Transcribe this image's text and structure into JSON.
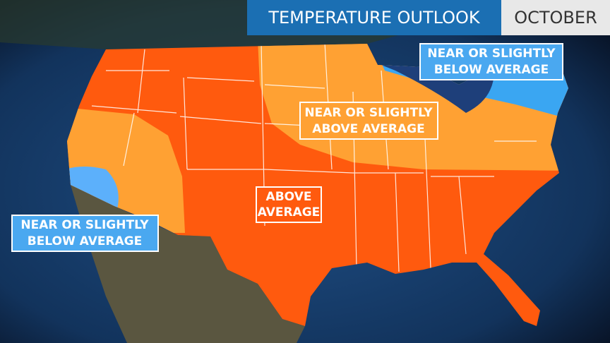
{
  "header": {
    "title": "TEMPERATURE OUTLOOK",
    "month": "OCTOBER"
  },
  "labels": [
    {
      "lines": [
        "NEAR OR SLIGHTLY",
        "BELOW AVERAGE"
      ]
    },
    {
      "lines": [
        "NEAR OR SLIGHTLY",
        "ABOVE AVERAGE"
      ]
    },
    {
      "lines": [
        "ABOVE",
        "AVERAGE"
      ]
    },
    {
      "lines": [
        "NEAR OR SLIGHTLY",
        "BELOW AVERAGE"
      ]
    }
  ]
}
